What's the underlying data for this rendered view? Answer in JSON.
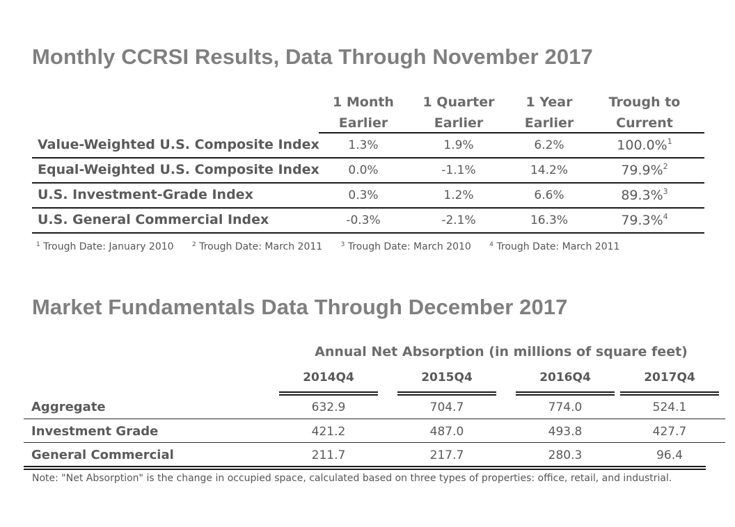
{
  "ccrsi": {
    "title": "Monthly CCRSI Results, Data Through November 2017",
    "columns": [
      "1 Month\nEarlier",
      "1 Quarter\nEarlier",
      "1 Year\nEarlier",
      "Trough to\nCurrent"
    ],
    "rows": [
      {
        "label": "Value-Weighted U.S. Composite Index",
        "month": "1.3%",
        "quarter": "1.9%",
        "year": "6.2%",
        "trough": "100.0%",
        "note": "1"
      },
      {
        "label": "Equal-Weighted U.S. Composite Index",
        "month": "0.0%",
        "quarter": "-1.1%",
        "year": "14.2%",
        "trough": "79.9%",
        "note": "2"
      },
      {
        "label": "U.S. Investment-Grade Index",
        "month": "0.3%",
        "quarter": "1.2%",
        "year": "6.6%",
        "trough": "89.3%",
        "note": "3"
      },
      {
        "label": "U.S. General Commercial Index",
        "month": "-0.3%",
        "quarter": "-2.1%",
        "year": "16.3%",
        "trough": "79.3%",
        "note": "4"
      }
    ],
    "footnotes": [
      {
        "mark": "1",
        "text": " Trough Date: January 2010"
      },
      {
        "mark": "2",
        "text": " Trough Date: March 2011"
      },
      {
        "mark": "3",
        "text": " Trough Date: March 2010"
      },
      {
        "mark": "4",
        "text": " Trough Date: March 2011"
      }
    ]
  },
  "fundamentals": {
    "title": "Market Fundamentals Data Through December 2017",
    "subtitle": "Annual Net Absorption (in millions of square feet)",
    "periods": [
      "2014Q4",
      "2015Q4",
      "2016Q4",
      "2017Q4"
    ],
    "rows": [
      {
        "label": "Aggregate",
        "values": [
          "632.9",
          "704.7",
          "774.0",
          "524.1"
        ]
      },
      {
        "label": "Investment Grade",
        "values": [
          "421.2",
          "487.0",
          "493.8",
          "427.7"
        ]
      },
      {
        "label": "General Commercial",
        "values": [
          "211.7",
          "217.7",
          "280.3",
          "96.4"
        ]
      }
    ],
    "note": "Note: \"Net Absorption\" is the change in occupied space, calculated based on three types of properties: office, retail, and industrial."
  }
}
